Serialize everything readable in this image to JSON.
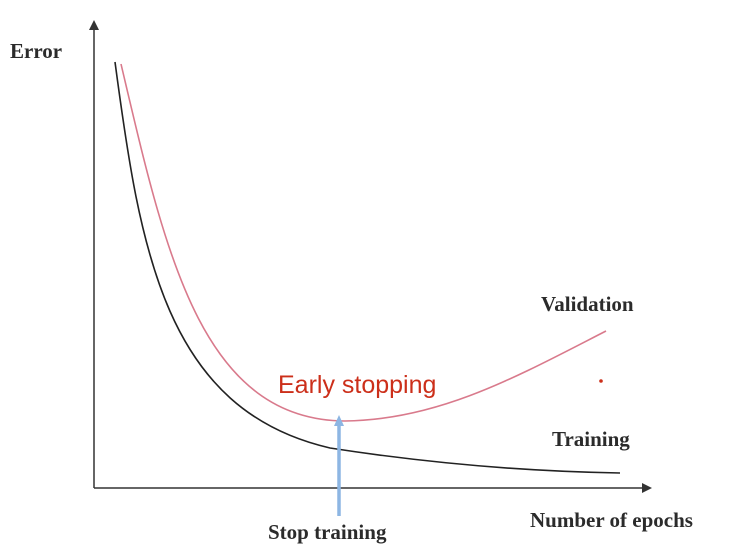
{
  "chart_data": {
    "type": "line",
    "ylabel": "Error",
    "xlabel": "Number of epochs",
    "series": [
      {
        "name": "Validation",
        "color": "#d97a8c"
      },
      {
        "name": "Training",
        "color": "#222222"
      }
    ],
    "annotations": {
      "early_stopping": "Early stopping",
      "early_stopping_color": "#cc2f1a",
      "stop_training": "Stop training",
      "arrow_color": "#8db6e3"
    }
  }
}
